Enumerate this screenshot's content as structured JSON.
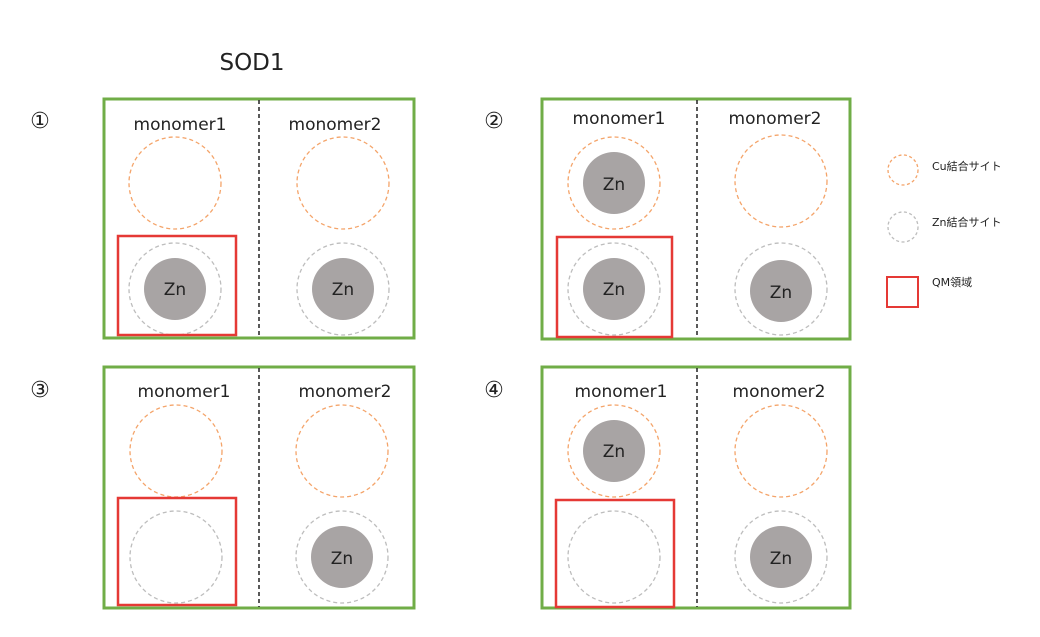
{
  "title": "SOD1",
  "colors": {
    "frame": "#70AD47",
    "cu_site": "#F4A46A",
    "zn_site": "#BDBDBD",
    "qm": "#E53935",
    "zn_fill": "#A8A4A4",
    "divider": "#222222"
  },
  "panels": [
    {
      "number": "①",
      "monomers": [
        {
          "label": "monomer1",
          "cu_occupied": false,
          "cu_text": "",
          "zn_occupied": true,
          "zn_text": "Zn"
        },
        {
          "label": "monomer2",
          "cu_occupied": false,
          "cu_text": "",
          "zn_occupied": true,
          "zn_text": "Zn"
        }
      ]
    },
    {
      "number": "②",
      "monomers": [
        {
          "label": "monomer1",
          "cu_occupied": true,
          "cu_text": "Zn",
          "zn_occupied": true,
          "zn_text": "Zn"
        },
        {
          "label": "monomer2",
          "cu_occupied": false,
          "cu_text": "",
          "zn_occupied": true,
          "zn_text": "Zn"
        }
      ]
    },
    {
      "number": "③",
      "monomers": [
        {
          "label": "monomer1",
          "cu_occupied": false,
          "cu_text": "",
          "zn_occupied": false,
          "zn_text": ""
        },
        {
          "label": "monomer2",
          "cu_occupied": false,
          "cu_text": "",
          "zn_occupied": true,
          "zn_text": "Zn"
        }
      ]
    },
    {
      "number": "④",
      "monomers": [
        {
          "label": "monomer1",
          "cu_occupied": true,
          "cu_text": "Zn",
          "zn_occupied": false,
          "zn_text": ""
        },
        {
          "label": "monomer2",
          "cu_occupied": false,
          "cu_text": "",
          "zn_occupied": true,
          "zn_text": "Zn"
        }
      ]
    }
  ],
  "legend": {
    "cu_label": "Cu結合サイト",
    "zn_label": "Zn結合サイト",
    "qm_label": "QM領域"
  }
}
